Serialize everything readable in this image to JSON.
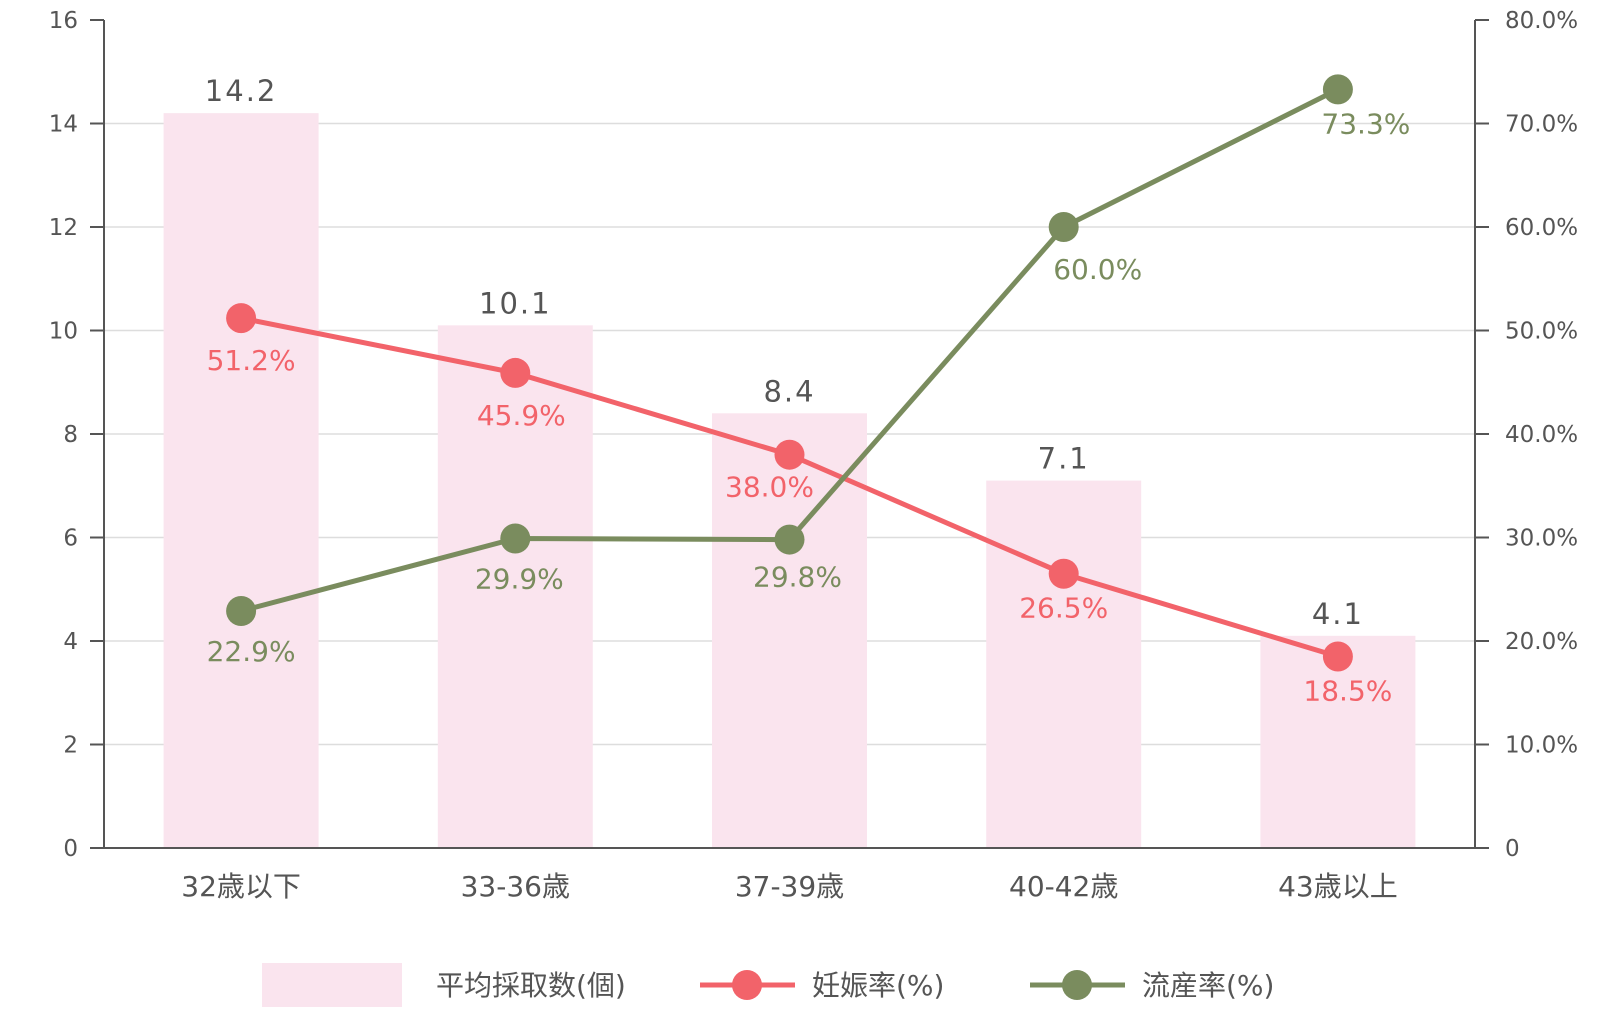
{
  "chart_data": {
    "type": "bar",
    "categories": [
      "32歳以下",
      "33-36歳",
      "37-39歳",
      "40-42歳",
      "43歳以上"
    ],
    "series": [
      {
        "name": "平均採取数(個)",
        "type": "bar",
        "axis": "left",
        "color": "#fae4ee",
        "values": [
          14.2,
          10.1,
          8.4,
          7.1,
          4.1
        ],
        "labels": [
          "14.2",
          "10.1",
          "8.4",
          "7.1",
          "4.1"
        ]
      },
      {
        "name": "妊娠率(%)",
        "type": "line",
        "axis": "right",
        "color": "#f2636a",
        "values": [
          51.2,
          45.9,
          38.0,
          26.5,
          18.5
        ],
        "labels": [
          "51.2%",
          "45.9%",
          "38.0%",
          "26.5%",
          "18.5%"
        ]
      },
      {
        "name": "流産率(%)",
        "type": "line",
        "axis": "right",
        "color": "#7a8c5e",
        "values": [
          22.9,
          29.9,
          29.8,
          60.0,
          73.3
        ],
        "labels": [
          "22.9%",
          "29.9%",
          "29.8%",
          "60.0%",
          "73.3%"
        ]
      }
    ],
    "left_axis": {
      "ylim": [
        0,
        16
      ],
      "ticks": [
        "0",
        "2",
        "4",
        "6",
        "8",
        "10",
        "12",
        "14",
        "16"
      ]
    },
    "right_axis": {
      "ylim": [
        0,
        80
      ],
      "ticks": [
        "0",
        "10.0%",
        "20.0%",
        "30.0%",
        "40.0%",
        "50.0%",
        "60.0%",
        "70.0%",
        "80.0%"
      ]
    },
    "grid": true,
    "legend_position": "bottom"
  }
}
